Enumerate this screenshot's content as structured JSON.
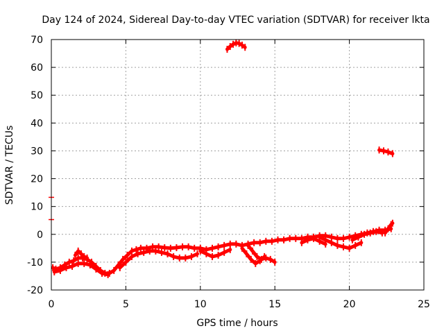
{
  "chart_data": {
    "type": "scatter",
    "title": "Day 124 of 2024, Sidereal Day-to-day VTEC variation (SDTVAR) for receiver lkta",
    "xlabel": "GPS time / hours",
    "ylabel": "SDTVAR / TECUs",
    "xlim": [
      0,
      25
    ],
    "ylim": [
      -20,
      70
    ],
    "xticks": [
      0,
      5,
      10,
      15,
      20,
      25
    ],
    "yticks": [
      -20,
      -10,
      0,
      10,
      20,
      30,
      40,
      50,
      60,
      70
    ],
    "grid": true,
    "series": [
      {
        "name": "SDTVAR",
        "color": "#ff0000",
        "tracks": [
          {
            "x": [
              0.1,
              0.3,
              0.6,
              0.9,
              1.2,
              1.5,
              1.8,
              2.1,
              2.4,
              2.7,
              3.0,
              3.3,
              3.6,
              3.9,
              4.2,
              4.5,
              4.8,
              5.1,
              5.4,
              5.7,
              6.0,
              6.4,
              6.8,
              7.2,
              7.6,
              8.0,
              8.4,
              8.8,
              9.2,
              9.6,
              10.0,
              10.4,
              10.8,
              11.2,
              11.6,
              12.0,
              12.4,
              12.8,
              13.2,
              13.6,
              14.0,
              14.4,
              14.8,
              15.2,
              15.6,
              16.0,
              16.4,
              16.8,
              17.2,
              17.6,
              18.0,
              18.4,
              18.8,
              19.2,
              19.6,
              20.0,
              20.4,
              20.8,
              21.2,
              21.6,
              22.0,
              22.4,
              22.8
            ],
            "y": [
              -12,
              -12.5,
              -12,
              -11,
              -10,
              -9.5,
              -8.5,
              -8.5,
              -9,
              -10,
              -11.5,
              -13,
              -14,
              -14,
              -13,
              -11,
              -9,
              -7.5,
              -6,
              -5.5,
              -5,
              -5,
              -4.5,
              -4.5,
              -4.8,
              -5,
              -4.8,
              -4.5,
              -4.5,
              -5,
              -5,
              -5.5,
              -5,
              -4.5,
              -4,
              -3.5,
              -3.5,
              -4,
              -3.5,
              -3,
              -3,
              -2.5,
              -2.5,
              -2,
              -2,
              -1.5,
              -1.5,
              -1.5,
              -1,
              -1,
              -0.5,
              -0.5,
              -1,
              -1.5,
              -1.5,
              -1,
              -0.5,
              0,
              0.5,
              1,
              1.5,
              1.5,
              2
            ]
          },
          {
            "x": [
              0.2,
              0.6,
              1.0,
              1.4,
              1.8,
              2.2,
              2.6,
              3.0,
              3.4,
              3.8
            ],
            "y": [
              -13.5,
              -13,
              -12,
              -11.5,
              -10.5,
              -10.5,
              -11,
              -12.5,
              -14,
              -14.5
            ]
          },
          {
            "x": [
              1.6,
              1.8,
              2.0,
              2.2,
              2.4
            ],
            "y": [
              -7.5,
              -6,
              -7,
              -8,
              -8.5
            ]
          },
          {
            "x": [
              4.6,
              5.0,
              5.4,
              5.8,
              6.2,
              6.6,
              7.0,
              7.4,
              7.8
            ],
            "y": [
              -12,
              -10,
              -8,
              -7,
              -6.5,
              -6,
              -6,
              -6.5,
              -7
            ]
          },
          {
            "x": [
              7.8,
              8.2,
              8.6,
              9.0,
              9.4,
              9.8
            ],
            "y": [
              -7,
              -8,
              -8.5,
              -8.5,
              -8,
              -7
            ]
          },
          {
            "x": [
              10.0,
              10.4,
              10.8,
              11.2,
              11.6,
              12.0
            ],
            "y": [
              -6,
              -7,
              -8,
              -7.5,
              -6.5,
              -5.5
            ]
          },
          {
            "x": [
              13.2,
              13.5,
              13.8,
              14.1,
              14.4,
              14.7,
              15.0
            ],
            "y": [
              -4,
              -6,
              -8,
              -9,
              -8.5,
              -9,
              -10
            ]
          },
          {
            "x": [
              12.8,
              13.1,
              13.4,
              13.7,
              14.0,
              14.3
            ],
            "y": [
              -5,
              -7,
              -9,
              -10.5,
              -9.5,
              -8
            ]
          },
          {
            "x": [
              16.8,
              17.2,
              17.6,
              18.0,
              18.4
            ],
            "y": [
              -3,
              -2,
              -1.5,
              -2.5,
              -3.5
            ]
          },
          {
            "x": [
              18.0,
              18.4,
              18.8,
              19.2,
              19.6,
              20.0,
              20.4,
              20.8
            ],
            "y": [
              -1,
              -2,
              -3,
              -4,
              -4.5,
              -5,
              -4,
              -3
            ]
          },
          {
            "x": [
              20.2,
              20.6,
              21.0,
              21.4,
              21.8,
              22.2
            ],
            "y": [
              -2,
              -1,
              0,
              0.5,
              1,
              0.5
            ]
          },
          {
            "x": [
              22.4,
              22.6,
              22.8,
              22.9
            ],
            "y": [
              0.5,
              2,
              3.5,
              4
            ]
          },
          {
            "x": [
              11.8,
              12.0,
              12.2,
              12.4,
              12.6,
              12.8,
              13.0
            ],
            "y": [
              66.5,
              67.5,
              68.3,
              68.8,
              68.6,
              68.0,
              67.2
            ]
          },
          {
            "x": [
              22.0,
              22.3,
              22.6,
              22.9
            ],
            "y": [
              30.3,
              30.0,
              29.6,
              29.0
            ]
          }
        ],
        "points": [
          {
            "x": 0.0,
            "y": 13.3
          },
          {
            "x": 0.0,
            "y": 5.3
          }
        ]
      }
    ]
  }
}
